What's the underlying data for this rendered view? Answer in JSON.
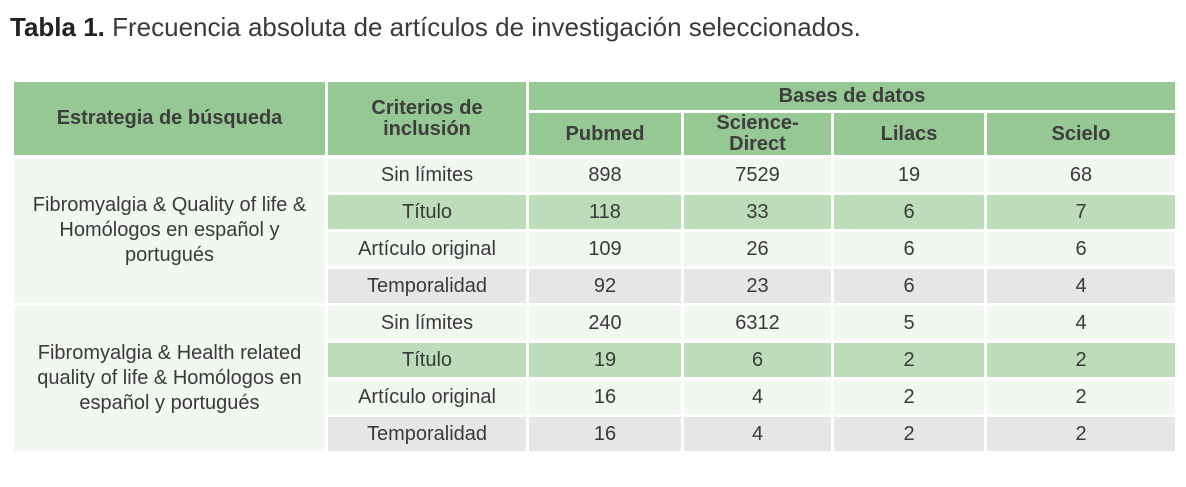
{
  "caption": {
    "label": "Tabla 1.",
    "text": "Frecuencia absoluta de artículos de investigación seleccionados."
  },
  "table": {
    "headers": {
      "strategy": "Estrategia de búsqueda",
      "criteria": "Criterios de inclusión",
      "databases": "Bases de datos",
      "columns": [
        "Pubmed",
        "Science-Direct",
        "Lilacs",
        "Scielo"
      ]
    },
    "groups": [
      {
        "strategy": "Fibromyalgia & Quality of life & Homólogos en español y portugués",
        "rows": [
          {
            "criterion": "Sin límites",
            "values": [
              "898",
              "7529",
              "19",
              "68"
            ]
          },
          {
            "criterion": "Título",
            "values": [
              "118",
              "33",
              "6",
              "7"
            ]
          },
          {
            "criterion": "Artículo original",
            "values": [
              "109",
              "26",
              "6",
              "6"
            ]
          },
          {
            "criterion": "Temporalidad",
            "values": [
              "92",
              "23",
              "6",
              "4"
            ]
          }
        ]
      },
      {
        "strategy": "Fibromyalgia & Health related quality of life & Homólogos en español y portugués",
        "rows": [
          {
            "criterion": "Sin límites",
            "values": [
              "240",
              "6312",
              "5",
              "4"
            ]
          },
          {
            "criterion": "Título",
            "values": [
              "19",
              "6",
              "2",
              "2"
            ]
          },
          {
            "criterion": "Artículo original",
            "values": [
              "16",
              "4",
              "2",
              "2"
            ]
          },
          {
            "criterion": "Temporalidad",
            "values": [
              "16",
              "4",
              "2",
              "2"
            ]
          }
        ]
      }
    ]
  }
}
